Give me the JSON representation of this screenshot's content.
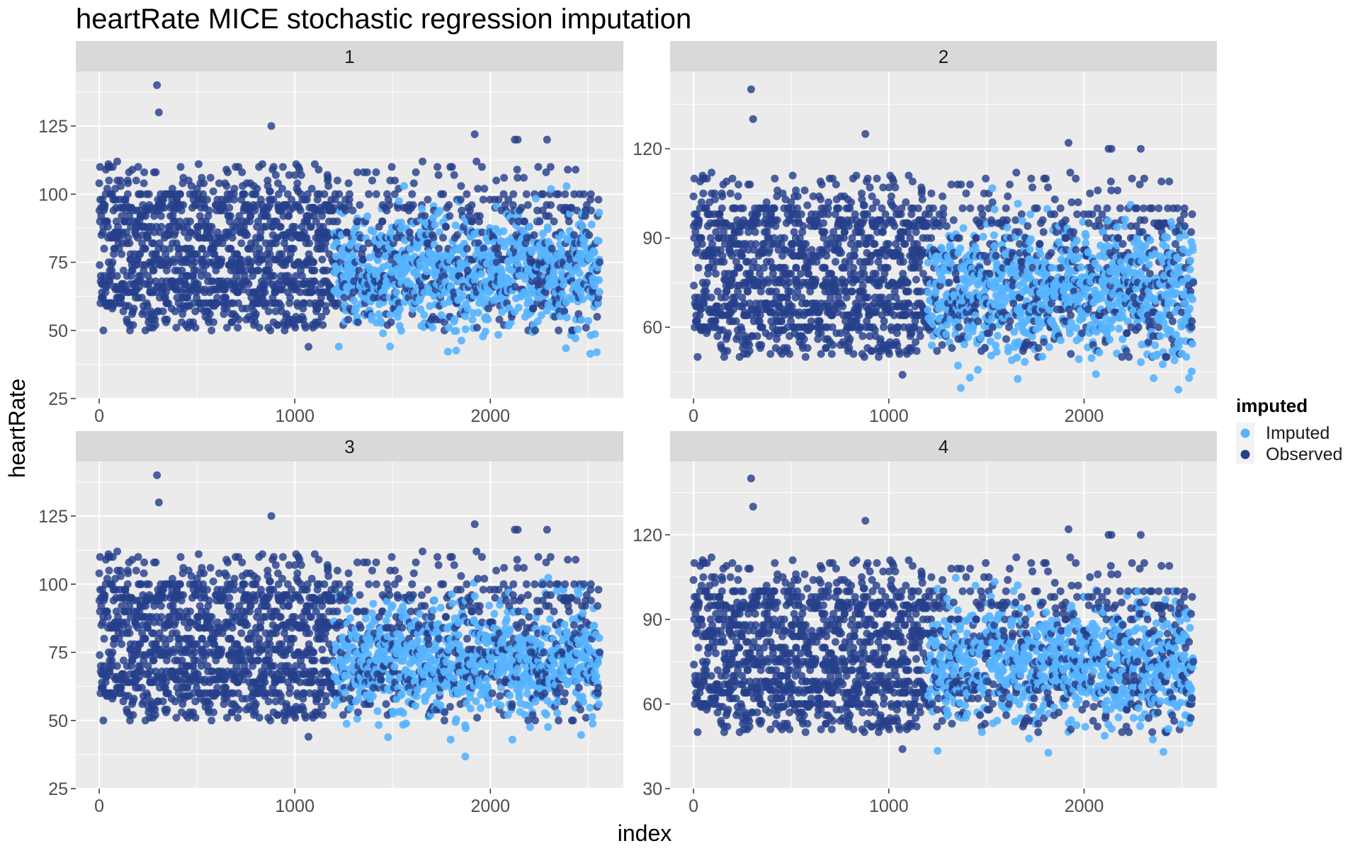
{
  "chart_data": {
    "type": "scatter",
    "title": "heartRate MICE stochastic regression imputation",
    "xlabel": "index",
    "ylabel": "heartRate",
    "legend": {
      "title": "imputed",
      "position": "right",
      "entries": [
        {
          "label": "Imputed",
          "color": "#56B4FF"
        },
        {
          "label": "Observed",
          "color": "#26408B"
        }
      ]
    },
    "colors": {
      "imputed": "#56B4FF",
      "observed": "#26408B",
      "panel_bg": "#EBEBEB",
      "strip_bg": "#D9D9D9"
    },
    "xlim": [
      -120,
      2680
    ],
    "x_ticks": [
      0,
      1000,
      2000
    ],
    "x_tick_labels": [
      "0",
      "1000",
      "2000"
    ],
    "n_points": 2560,
    "imputed_from_index": 1200,
    "panels": [
      {
        "label": "1",
        "ylim": [
          25,
          145
        ],
        "y_ticks": [
          25,
          50,
          75,
          100,
          125
        ],
        "y_tick_labels": [
          "25",
          "50",
          "75",
          "100",
          "125"
        ],
        "observed_range": [
          44,
          140
        ],
        "imputed_range": [
          30,
          103
        ],
        "imputed_mean": 72,
        "imputed_sd": 10.5
      },
      {
        "label": "2",
        "ylim": [
          36,
          146
        ],
        "y_ticks": [
          60,
          90,
          120
        ],
        "y_tick_labels": [
          "60",
          "90",
          "120"
        ],
        "observed_range": [
          44,
          140
        ],
        "imputed_range": [
          39,
          108
        ],
        "imputed_mean": 72,
        "imputed_sd": 11
      },
      {
        "label": "3",
        "ylim": [
          25,
          145
        ],
        "y_ticks": [
          25,
          50,
          75,
          100,
          125
        ],
        "y_tick_labels": [
          "25",
          "50",
          "75",
          "100",
          "125"
        ],
        "observed_range": [
          44,
          140
        ],
        "imputed_range": [
          29,
          116
        ],
        "imputed_mean": 72,
        "imputed_sd": 11
      },
      {
        "label": "4",
        "ylim": [
          30,
          146
        ],
        "y_ticks": [
          30,
          60,
          90,
          120
        ],
        "y_tick_labels": [
          "30",
          "60",
          "90",
          "120"
        ],
        "observed_range": [
          44,
          140
        ],
        "imputed_range": [
          35,
          107
        ],
        "imputed_mean": 74,
        "imputed_sd": 11
      }
    ],
    "highlight_observed_points": [
      {
        "x": 295,
        "y": 140
      },
      {
        "x": 305,
        "y": 130
      },
      {
        "x": 880,
        "y": 125
      },
      {
        "x": 1070,
        "y": 44
      },
      {
        "x": 1920,
        "y": 122
      },
      {
        "x": 2125,
        "y": 120
      },
      {
        "x": 2140,
        "y": 120
      },
      {
        "x": 2290,
        "y": 120
      }
    ]
  }
}
